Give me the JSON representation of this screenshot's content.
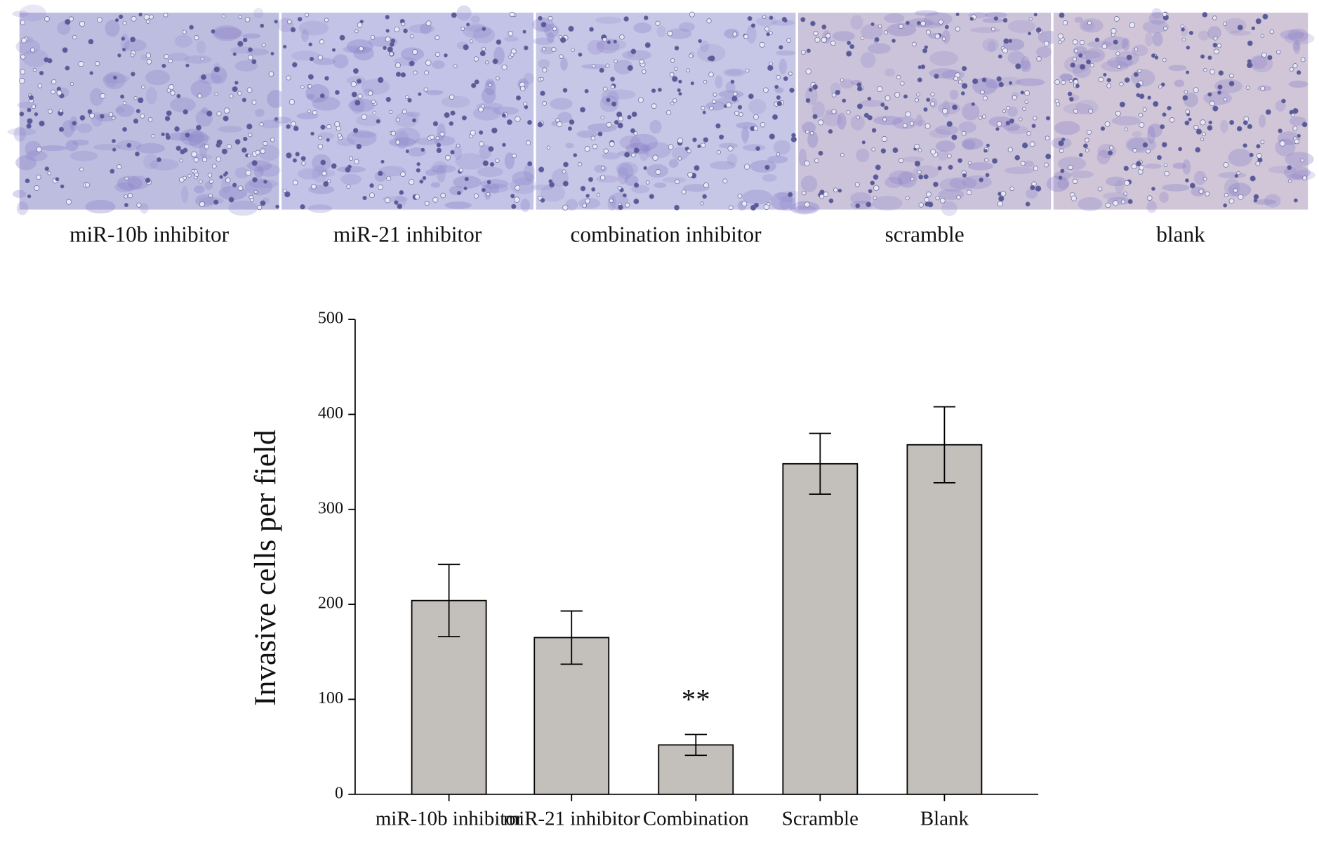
{
  "image_panels": [
    "miR-10b inhibitor",
    "miR-21 inhibitor",
    "combination inhibitor",
    "scramble",
    "blank"
  ],
  "chart_data": {
    "type": "bar",
    "y_label": "Invasive cells per field",
    "categories": [
      "miR-10b inhibitor",
      "miR-21 inhibitor",
      "Combination",
      "Scramble",
      "Blank"
    ],
    "values": [
      204,
      165,
      52,
      348,
      368
    ],
    "errors": [
      38,
      28,
      11,
      32,
      40
    ],
    "color": "#c3bfbb",
    "ylim": [
      0,
      500
    ],
    "yticks": [
      0,
      100,
      200,
      300,
      400,
      500
    ],
    "grid": false,
    "annotations": [
      {
        "text": "**",
        "category": "Combination"
      }
    ]
  }
}
